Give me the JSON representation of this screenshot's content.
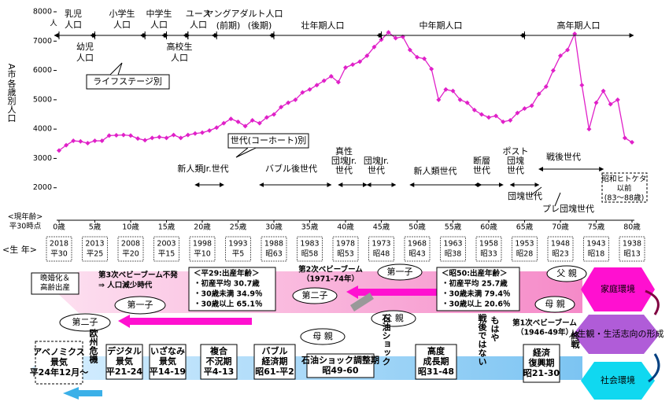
{
  "chart_data": {
    "type": "line",
    "y_label": [
      "A市",
      "各歳別人口"
    ],
    "y_unit": "人",
    "x_label": [
      "<現年齢>",
      "平30時点"
    ],
    "color": "#e020c8",
    "x": [
      0,
      1,
      2,
      3,
      4,
      5,
      6,
      7,
      8,
      9,
      10,
      11,
      12,
      13,
      14,
      15,
      16,
      17,
      18,
      19,
      20,
      21,
      22,
      23,
      24,
      25,
      26,
      27,
      28,
      29,
      30,
      31,
      32,
      33,
      34,
      35,
      36,
      37,
      38,
      39,
      40,
      41,
      42,
      43,
      44,
      45,
      46,
      47,
      48,
      49,
      50,
      51,
      52,
      53,
      54,
      55,
      56,
      57,
      58,
      59,
      60,
      61,
      62,
      63,
      64,
      65,
      66,
      67,
      68,
      69,
      70,
      71,
      72,
      73,
      74,
      75,
      76,
      77,
      78,
      79,
      80
    ],
    "values": [
      3270,
      3450,
      3600,
      3580,
      3520,
      3600,
      3600,
      3780,
      3790,
      3800,
      3780,
      3680,
      3620,
      3700,
      3730,
      3700,
      3800,
      3700,
      3800,
      3850,
      3880,
      3950,
      4050,
      4200,
      4350,
      4250,
      4100,
      4300,
      4200,
      4400,
      4500,
      4750,
      4900,
      5000,
      5250,
      5350,
      5500,
      5650,
      5800,
      5600,
      6100,
      6200,
      6300,
      6500,
      6800,
      7050,
      7300,
      7100,
      7150,
      6700,
      6450,
      6400,
      6050,
      5000,
      5350,
      5300,
      5000,
      4900,
      4650,
      4500,
      4400,
      4450,
      4250,
      4300,
      4550,
      4700,
      4800,
      5200,
      5450,
      6000,
      6500,
      6700,
      7250,
      5500,
      4000,
      4900,
      5300,
      4850,
      5000,
      3700,
      3550
    ],
    "xlim": [
      0,
      80
    ],
    "ylim": [
      1000,
      8000
    ],
    "xticks": [
      {
        "value": 0,
        "label": "0歳"
      },
      {
        "value": 5,
        "label": "5歳"
      },
      {
        "value": 10,
        "label": "10歳"
      },
      {
        "value": 15,
        "label": "15歳"
      },
      {
        "value": 20,
        "label": "20歳"
      },
      {
        "value": 25,
        "label": "25歳"
      },
      {
        "value": 30,
        "label": "30歳"
      },
      {
        "value": 35,
        "label": "35歳"
      },
      {
        "value": 40,
        "label": "40歳"
      },
      {
        "value": 45,
        "label": "45歳"
      },
      {
        "value": 50,
        "label": "50歳"
      },
      {
        "value": 55,
        "label": "55歳"
      },
      {
        "value": 60,
        "label": "60歳"
      },
      {
        "value": 65,
        "label": "65歳"
      },
      {
        "value": 70,
        "label": "70歳"
      },
      {
        "value": 75,
        "label": "75歳"
      },
      {
        "value": 80,
        "label": "80歳"
      }
    ],
    "yticks": [
      2000,
      3000,
      4000,
      5000,
      6000,
      7000,
      8000
    ]
  },
  "life_stages": [
    [
      "乳児",
      "人口"
    ],
    [
      "幼児",
      "人口"
    ],
    [
      "小学生",
      "人口"
    ],
    [
      "中学生",
      "人口"
    ],
    [
      "高校生",
      "人口"
    ],
    [
      "ユース",
      "人口"
    ],
    "ヤングアダルト人口",
    "(前期)",
    "(後期)",
    "壮年期人口",
    "中年期人口",
    "高年期人口"
  ],
  "callouts": [
    "ライフステージ別",
    "世代(コーホート)別"
  ],
  "generations": [
    "新人類Jr.世代",
    "バブル後世代",
    [
      "真性",
      "団塊Jr.",
      "世代"
    ],
    [
      "団塊Jr.",
      "世代"
    ],
    "新人類世代",
    [
      "断層",
      "世代"
    ],
    [
      "ポスト",
      "団塊",
      "世代"
    ],
    "戦後世代",
    "団塊世代",
    "プレ団塊世代",
    [
      "昭和ヒトケタ",
      "以前",
      "(83～88歳)"
    ]
  ],
  "birth_label": "<生 年>",
  "birth_years": [
    [
      "2018",
      "平30"
    ],
    [
      "2013",
      "平25"
    ],
    [
      "2008",
      "平20"
    ],
    [
      "2003",
      "平15"
    ],
    [
      "1998",
      "平10"
    ],
    [
      "1993",
      "平5"
    ],
    [
      "1988",
      "昭63"
    ],
    [
      "1983",
      "昭58"
    ],
    [
      "1978",
      "昭53"
    ],
    [
      "1973",
      "昭48"
    ],
    [
      "1968",
      "昭43"
    ],
    [
      "1963",
      "昭38"
    ],
    [
      "1958",
      "昭33"
    ],
    [
      "1953",
      "昭28"
    ],
    [
      "1948",
      "昭23"
    ],
    [
      "1943",
      "昭18"
    ],
    [
      "1938",
      "昭13"
    ]
  ],
  "family": {
    "late_marriage": [
      "晩婚化＆",
      "高齢出産"
    ],
    "third_boom": [
      "第3次ベビーブーム不発",
      "⇒ 人口減少時代"
    ],
    "birth_h29": [
      "＜平29:出産年齢＞",
      "・初産平均 30.7歳",
      "・30歳未満 34.9％",
      "・30歳以上 65.1％"
    ],
    "second_boom": [
      "第2次ベビーブーム",
      "（1971-74年）"
    ],
    "birth_s50": [
      "＜昭50:出産年齢＞",
      "・初産平均 25.7歳",
      "・30歳未満 79.4％",
      "・30歳以上 20.6％"
    ],
    "first_child_a": "第一子",
    "second_child_a": "第二子",
    "first_child_b": "第一子",
    "second_child_b": "第二子",
    "father_a": "父 親",
    "mother_a": "母 親",
    "father_b": "父 親",
    "mother_b": "母 親",
    "first_boom": [
      "第1次ベビーブーム",
      "（1946-49年）"
    ]
  },
  "hexagons": [
    "家庭環境",
    "人生観・生活志向の形成",
    "社会環境"
  ],
  "economy": [
    [
      "アベノミクス",
      "景気",
      "平24年12月～"
    ],
    "欧州危機",
    [
      "デジタル",
      "景気",
      "平21-24"
    ],
    [
      "いざなみ",
      "景気",
      "平14-19"
    ],
    [
      "複合",
      "不況期",
      "平4-13"
    ],
    [
      "バブル",
      "経済期",
      "昭61-平2"
    ],
    [
      "石油ショック調整期",
      "昭49-60"
    ],
    "石油ショック",
    [
      "高度",
      "成長期",
      "昭31-48"
    ],
    "もはや",
    "戦後ではない",
    [
      "経済",
      "復興期",
      "昭21-30"
    ],
    "終戦"
  ]
}
